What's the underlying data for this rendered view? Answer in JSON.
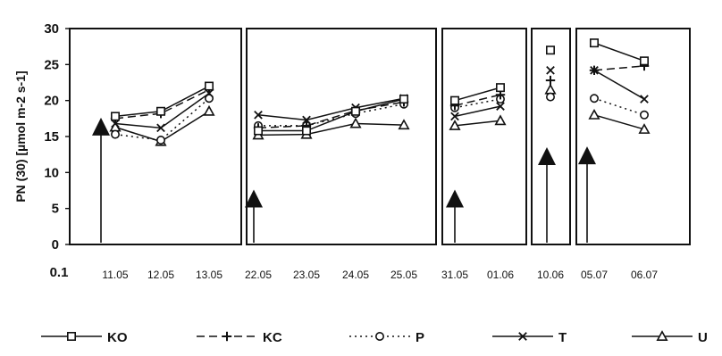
{
  "chart_data": {
    "type": "line",
    "ylabel": "PN (30) [µmol m-2 s-1]",
    "y_axis_extra_label": "0.1",
    "ylim": [
      0,
      30
    ],
    "yticks": [
      "0",
      "5",
      "10",
      "15",
      "20",
      "25",
      "30"
    ],
    "grid": false,
    "legend_position": "bottom",
    "panels": [
      {
        "categories": [
          "11.05",
          "12.05",
          "13.05"
        ],
        "arrow_at": 17.0,
        "series": {
          "KO": [
            17.8,
            18.5,
            22.0
          ],
          "KC": [
            17.5,
            18.2,
            21.5
          ],
          "P": [
            15.3,
            14.5,
            20.3
          ],
          "T": [
            16.8,
            16.2,
            21.0
          ],
          "U": [
            16.3,
            14.3,
            18.5
          ]
        }
      },
      {
        "categories": [
          "22.05",
          "23.05",
          "24.05",
          "25.05"
        ],
        "arrow_at": 7.0,
        "series": {
          "KO": [
            15.8,
            15.8,
            18.5,
            20.2
          ],
          "KC": [
            16.2,
            16.5,
            18.6,
            19.8
          ],
          "P": [
            16.5,
            16.5,
            18.2,
            19.5
          ],
          "T": [
            18.0,
            17.3,
            19.0,
            20.3
          ],
          "U": [
            15.2,
            15.3,
            16.8,
            16.6
          ]
        }
      },
      {
        "categories": [
          "31.05",
          "01.06"
        ],
        "arrow_at": 7.0,
        "series": {
          "KO": [
            20.0,
            21.8
          ],
          "KC": [
            19.3,
            20.8
          ],
          "P": [
            19.0,
            20.2
          ],
          "T": [
            17.8,
            19.2
          ],
          "U": [
            16.5,
            17.2
          ]
        }
      },
      {
        "categories": [
          "10.06"
        ],
        "arrow_at": 12.9,
        "series": {
          "KO": [
            27.0
          ],
          "KC": [
            22.8
          ],
          "P": [
            20.5
          ],
          "T": [
            24.2
          ],
          "U": [
            21.5
          ]
        }
      },
      {
        "categories": [
          "05.07",
          "06.07"
        ],
        "arrow_at": 13.0,
        "series": {
          "KO": [
            28.0,
            25.5
          ],
          "KC": [
            24.2,
            24.8
          ],
          "P": [
            20.3,
            18.0
          ],
          "T": [
            24.2,
            20.2
          ],
          "U": [
            18.0,
            16.0
          ]
        }
      }
    ],
    "legend": [
      {
        "key": "KO",
        "label": "KO",
        "marker": "square",
        "dash": "solid"
      },
      {
        "key": "KC",
        "label": "KC",
        "marker": "plus",
        "dash": "dashed"
      },
      {
        "key": "P",
        "label": "P",
        "marker": "circle",
        "dash": "dotted"
      },
      {
        "key": "T",
        "label": "T",
        "marker": "cross",
        "dash": "solid"
      },
      {
        "key": "U",
        "label": "U",
        "marker": "triangle",
        "dash": "solid"
      }
    ],
    "colors": {
      "line": "#111111",
      "frame": "#111111",
      "background": "#ffffff"
    }
  }
}
